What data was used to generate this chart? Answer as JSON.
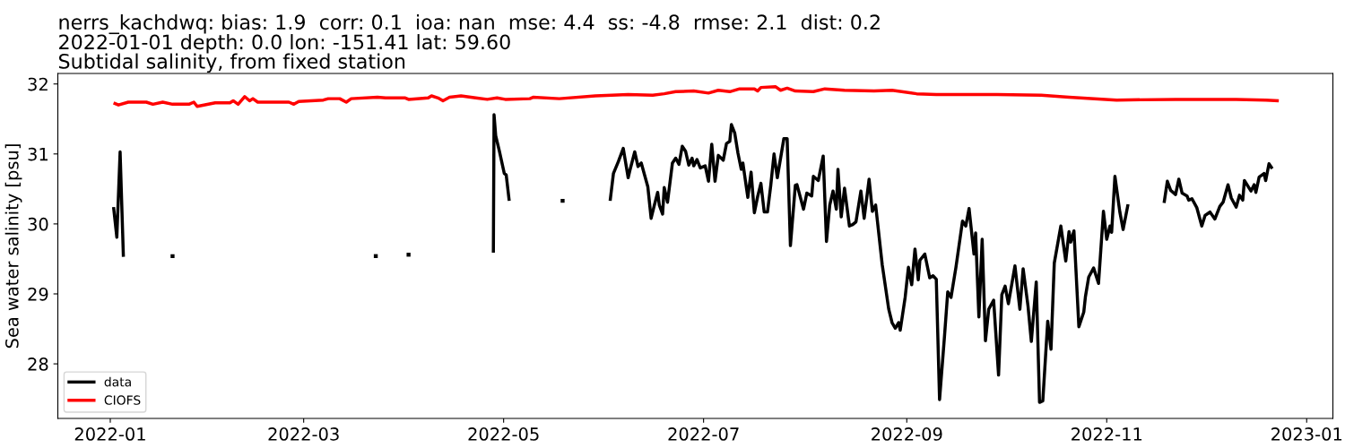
{
  "chart_data": {
    "type": "line",
    "title": "nerrs_kachdwq: bias: 1.9  corr: 0.1  ioa: nan  mse: 4.4  ss: -4.8  rmse: 2.1  dist: 0.2\n2022-01-01 depth: 0.0 lon: -151.41 lat: 59.60\nSubtidal salinity, from fixed station",
    "ylabel": "Sea water salinity [psu]",
    "xlim": [
      "2021-12-16",
      "2023-01-09"
    ],
    "xticks": [
      {
        "value": "2022-01-01",
        "label": "2022-01"
      },
      {
        "value": "2022-03-01",
        "label": "2022-03"
      },
      {
        "value": "2022-05-01",
        "label": "2022-05"
      },
      {
        "value": "2022-07-01",
        "label": "2022-07"
      },
      {
        "value": "2022-09-01",
        "label": "2022-09"
      },
      {
        "value": "2022-11-01",
        "label": "2022-11"
      },
      {
        "value": "2023-01-01",
        "label": "2023-01"
      }
    ],
    "ylim": [
      27.22,
      32.15
    ],
    "yticks": [
      28,
      29,
      30,
      31,
      32
    ],
    "grid": false,
    "legend": "bottom left",
    "series": [
      {
        "name": "data",
        "color": "#000000",
        "x": [
          "2022-01-02",
          "2022-01-03",
          "2022-01-04",
          "2022-01-05",
          "2022-01-10",
          "2022-04-27T21:00",
          "2022-04-28T02:00",
          "2022-04-28T14:00",
          "2022-04-29T17:00",
          "2022-05-01T05:00",
          "2022-05-01T19:00",
          "2022-05-02T17:00",
          "2022-05-10",
          "2022-06-02T12:00",
          "2022-06-03T12:00",
          "2022-06-05",
          "2022-06-06T12:00",
          "2022-06-08",
          "2022-06-08T12:00",
          "2022-06-10",
          "2022-06-11",
          "2022-06-12",
          "2022-06-13",
          "2022-06-14",
          "2022-06-15",
          "2022-06-16",
          "2022-06-17",
          "2022-06-17T12:00",
          "2022-06-18T12:00",
          "2022-06-19",
          "2022-06-20",
          "2022-06-21T12:00",
          "2022-06-22T12:00",
          "2022-06-23T12:00",
          "2022-06-24T12:00",
          "2022-06-25T12:00",
          "2022-06-26T12:00",
          "2022-06-27T12:00",
          "2022-06-28",
          "2022-06-29",
          "2022-06-30",
          "2022-07-01T12:00",
          "2022-07-02T12:00",
          "2022-07-03T12:00",
          "2022-07-04T12:00",
          "2022-07-05T12:00",
          "2022-07-07",
          "2022-07-08",
          "2022-07-09",
          "2022-07-09T12:00",
          "2022-07-10T12:00",
          "2022-07-11T12:00",
          "2022-07-12T12:00",
          "2022-07-13",
          "2022-07-14T12:00",
          "2022-07-15T12:00",
          "2022-07-16T12:00",
          "2022-07-17T12:00",
          "2022-07-18T12:00",
          "2022-07-19T12:00",
          "2022-07-20T12:00",
          "2022-07-21T12:00",
          "2022-07-22T12:00",
          "2022-07-23T12:00",
          "2022-07-25T12:00",
          "2022-07-26T12:00",
          "2022-07-27T12:00",
          "2022-07-29",
          "2022-07-29T12:00",
          "2022-07-31T12:00",
          "2022-08-01T12:00",
          "2022-08-03",
          "2022-08-03T12:00",
          "2022-08-05",
          "2022-08-06T12:00",
          "2022-08-07T12:00",
          "2022-08-08T12:00",
          "2022-08-09T12:00",
          "2022-08-10T12:00",
          "2022-08-11",
          "2022-08-12",
          "2022-08-13",
          "2022-08-14T12:00",
          "2022-08-15T12:00",
          "2022-08-16T12:00",
          "2022-08-18",
          "2022-08-19",
          "2022-08-20T12:00",
          "2022-08-21T12:00",
          "2022-08-22T12:00",
          "2022-08-24T12:00",
          "2022-08-26T12:00",
          "2022-08-27T12:00",
          "2022-08-28T12:00",
          "2022-08-29T12:00",
          "2022-08-30",
          "2022-08-31T12:00",
          "2022-09-01T12:00",
          "2022-09-02T12:00",
          "2022-09-03T12:00",
          "2022-09-04T12:00",
          "2022-09-05",
          "2022-09-06T12:00",
          "2022-09-08",
          "2022-09-09",
          "2022-09-10",
          "2022-09-11",
          "2022-09-12T12:00",
          "2022-09-13T12:00",
          "2022-09-14T12:00",
          "2022-09-16",
          "2022-09-18",
          "2022-09-19",
          "2022-09-20",
          "2022-09-21T12:00",
          "2022-09-22",
          "2022-09-23",
          "2022-09-24",
          "2022-09-25",
          "2022-09-26",
          "2022-09-27T12:00",
          "2022-09-29",
          "2022-09-30",
          "2022-10-01",
          "2022-10-02",
          "2022-10-04",
          "2022-10-05T12:00",
          "2022-10-06T12:00",
          "2022-10-08",
          "2022-10-09",
          "2022-10-10T12:00",
          "2022-10-11T12:00",
          "2022-10-12T12:00",
          "2022-10-14",
          "2022-10-15",
          "2022-10-16",
          "2022-10-18",
          "2022-10-19T12:00",
          "2022-10-20T12:00",
          "2022-10-21",
          "2022-10-22",
          "2022-10-23T12:00",
          "2022-10-25",
          "2022-10-25T12:00",
          "2022-10-26T12:00",
          "2022-10-28",
          "2022-10-29T12:00",
          "2022-10-31",
          "2022-11-01",
          "2022-11-02",
          "2022-11-02T12:00",
          "2022-11-03T12:00",
          "2022-11-05",
          "2022-11-06",
          "2022-11-07T12:00",
          "2022-11-12",
          "2022-11-18T12:00",
          "2022-11-19T12:00",
          "2022-11-20T12:00",
          "2022-11-22",
          "2022-11-23",
          "2022-11-24",
          "2022-11-25T12:00",
          "2022-11-26",
          "2022-11-27",
          "2022-11-28T12:00",
          "2022-11-30",
          "2022-12-01",
          "2022-12-02T12:00",
          "2022-12-04",
          "2022-12-05T12:00",
          "2022-12-06T12:00",
          "2022-12-08",
          "2022-12-09",
          "2022-12-10T12:00",
          "2022-12-11T12:00",
          "2022-12-12T12:00",
          "2022-12-13",
          "2022-12-15",
          "2022-12-16",
          "2022-12-16T12:00",
          "2022-12-17T12:00",
          "2022-12-19",
          "2022-12-19T12:00",
          "2022-12-20T12:00",
          "2022-12-21T12:00"
        ],
        "values": [
          30.24,
          29.81,
          31.03,
          29.53,
          null,
          29.59,
          31.56,
          31.26,
          31.04,
          30.72,
          30.7,
          30.33,
          null,
          30.33,
          30.72,
          30.89,
          31.08,
          30.66,
          30.76,
          31.03,
          30.82,
          30.87,
          30.7,
          30.53,
          30.08,
          30.27,
          30.45,
          30.27,
          30.14,
          30.52,
          30.31,
          30.87,
          30.94,
          30.85,
          31.11,
          31.04,
          30.84,
          30.94,
          30.83,
          30.92,
          30.8,
          30.83,
          30.61,
          31.14,
          30.61,
          30.98,
          30.91,
          31.15,
          31.18,
          31.42,
          31.3,
          31.01,
          30.78,
          30.87,
          30.38,
          30.74,
          30.16,
          30.39,
          30.58,
          30.17,
          30.17,
          30.55,
          31.0,
          30.66,
          31.22,
          31.22,
          29.69,
          30.55,
          30.56,
          30.21,
          30.44,
          30.4,
          30.68,
          30.62,
          30.97,
          29.75,
          30.27,
          30.47,
          30.21,
          30.78,
          30.1,
          30.51,
          29.97,
          29.99,
          30.03,
          30.47,
          30.08,
          30.64,
          30.18,
          30.27,
          29.42,
          28.78,
          28.59,
          28.51,
          28.59,
          28.48,
          28.95,
          29.38,
          29.13,
          29.64,
          29.2,
          29.48,
          29.57,
          29.23,
          29.26,
          29.21,
          27.49,
          28.39,
          29.03,
          28.95,
          29.38,
          30.04,
          29.97,
          30.22,
          29.57,
          29.87,
          28.67,
          29.78,
          28.33,
          28.78,
          28.91,
          27.84,
          28.99,
          29.11,
          28.86,
          29.4,
          28.78,
          29.36,
          28.82,
          28.32,
          29.17,
          27.45,
          27.47,
          28.61,
          28.21,
          29.44,
          29.97,
          29.47,
          29.89,
          29.74,
          29.9,
          28.53,
          28.74,
          28.96,
          29.24,
          29.37,
          29.15,
          30.18,
          29.78,
          29.97,
          29.88,
          30.68,
          30.17,
          29.92,
          30.28,
          null,
          30.3,
          30.61,
          30.48,
          30.42,
          30.64,
          30.44,
          30.4,
          30.34,
          30.36,
          30.23,
          29.97,
          30.12,
          30.17,
          30.07,
          30.25,
          30.31,
          30.56,
          30.37,
          30.24,
          30.41,
          30.34,
          30.62,
          30.47,
          30.56,
          30.45,
          30.67,
          30.72,
          30.62,
          30.86,
          30.79
        ]
      },
      {
        "type": "scatter",
        "marker": "square",
        "color": "#000000",
        "x": [
          "2022-01-20",
          "2022-03-23",
          "2022-04-02",
          "2022-05-19"
        ],
        "values": [
          29.54,
          29.54,
          29.56,
          30.33
        ]
      },
      {
        "name": "CIOFS",
        "color": "#ff0000",
        "x": [
          "2022-01-02",
          "2022-01-03T12:00",
          "2022-01-06T12:00",
          "2022-01-12",
          "2022-01-14",
          "2022-01-17",
          "2022-01-20",
          "2022-01-25",
          "2022-01-26T12:00",
          "2022-01-27T12:00",
          "2022-02-02",
          "2022-02-06T12:00",
          "2022-02-07T12:00",
          "2022-02-09",
          "2022-02-11",
          "2022-02-12T12:00",
          "2022-02-13T12:00",
          "2022-02-15",
          "2022-02-21T12:00",
          "2022-02-24T12:00",
          "2022-02-26",
          "2022-02-27T12:00",
          "2022-03-07",
          "2022-03-08T12:00",
          "2022-03-12",
          "2022-03-14",
          "2022-03-15T12:00",
          "2022-03-23T12:00",
          "2022-03-26",
          "2022-04-01",
          "2022-04-02",
          "2022-04-08",
          "2022-04-09",
          "2022-04-11",
          "2022-04-12T12:00",
          "2022-04-14T12:00",
          "2022-04-18",
          "2022-04-22T12:00",
          "2022-04-26",
          "2022-04-29",
          "2022-05-01T12:00",
          "2022-05-09",
          "2022-05-10",
          "2022-05-18",
          "2022-05-29",
          "2022-06-08",
          "2022-06-15T12:00",
          "2022-06-19",
          "2022-06-22T12:00",
          "2022-06-28",
          "2022-07-02T12:00",
          "2022-07-05T12:00",
          "2022-07-09",
          "2022-07-12",
          "2022-07-16T12:00",
          "2022-07-17T12:00",
          "2022-07-18T12:00",
          "2022-07-23",
          "2022-07-24T12:00",
          "2022-07-26T12:00",
          "2022-07-29",
          "2022-08-03T12:00",
          "2022-08-07",
          "2022-08-13",
          "2022-08-22",
          "2022-08-27T12:00",
          "2022-09-04",
          "2022-09-10",
          "2022-09-28T12:00",
          "2022-10-12",
          "2022-10-20T12:00",
          "2022-11-04",
          "2022-11-22",
          "2022-12-10T12:00",
          "2022-12-19T12:00",
          "2022-12-23T12:00"
        ],
        "values": [
          31.73,
          31.7,
          31.74,
          31.74,
          31.71,
          31.74,
          31.71,
          31.71,
          31.74,
          31.68,
          31.73,
          31.73,
          31.76,
          31.71,
          31.82,
          31.76,
          31.79,
          31.74,
          31.74,
          31.74,
          31.71,
          31.75,
          31.77,
          31.79,
          31.79,
          31.74,
          31.79,
          31.81,
          31.8,
          31.8,
          31.78,
          31.8,
          31.83,
          31.8,
          31.76,
          31.81,
          31.83,
          31.8,
          31.78,
          31.8,
          31.78,
          31.79,
          31.81,
          31.79,
          31.83,
          31.85,
          31.84,
          31.86,
          31.89,
          31.9,
          31.87,
          31.91,
          31.89,
          31.93,
          31.93,
          31.9,
          31.95,
          31.96,
          31.91,
          31.94,
          31.9,
          31.89,
          31.93,
          31.91,
          31.9,
          31.91,
          31.86,
          31.85,
          31.85,
          31.84,
          31.81,
          31.77,
          31.78,
          31.78,
          31.77,
          31.76
        ]
      }
    ]
  }
}
